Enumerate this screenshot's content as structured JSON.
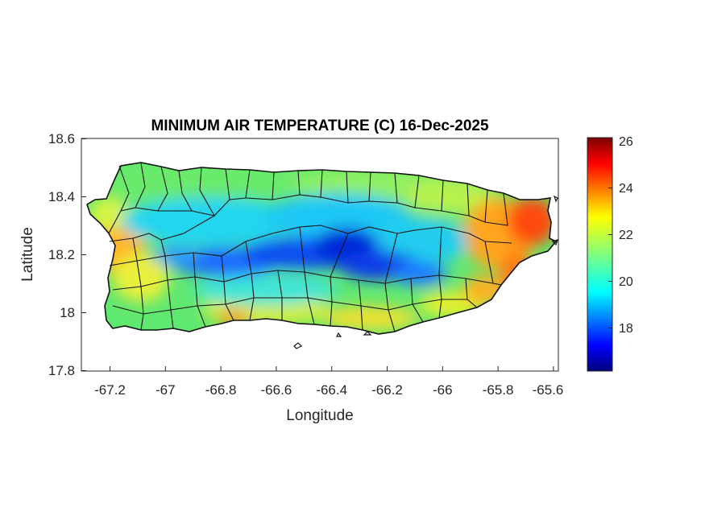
{
  "title": "MINIMUM AIR TEMPERATURE (C) 16-Dec-2025",
  "xlabel": "Longitude",
  "ylabel": "Latitude",
  "xticks": [
    "-67.2",
    "-67",
    "-66.8",
    "-66.6",
    "-66.4",
    "-66.2",
    "-66",
    "-65.8",
    "-65.6"
  ],
  "yticks": [
    "18.6",
    "18.4",
    "18.2",
    "18",
    "17.8"
  ],
  "colorbar": {
    "ticks": [
      "26",
      "24",
      "22",
      "20",
      "18"
    ],
    "range": [
      16.2,
      26.2
    ],
    "colormap": "jet"
  },
  "chart_data": {
    "type": "heatmap",
    "title": "MINIMUM AIR TEMPERATURE (C) 16-Dec-2025",
    "xlabel": "Longitude",
    "ylabel": "Latitude",
    "xlim": [
      -67.3,
      -65.58
    ],
    "ylim": [
      17.8,
      18.6
    ],
    "region": "Puerto Rico (municipality boundaries)",
    "grid": false,
    "temperature_zones": [
      {
        "area": "central cordillera",
        "value_c": 17.5
      },
      {
        "area": "interior highlands",
        "value_c": 19.5
      },
      {
        "area": "north coast",
        "value_c": 21.0
      },
      {
        "area": "west coast",
        "value_c": 22.5
      },
      {
        "area": "south coast",
        "value_c": 22.0
      },
      {
        "area": "east coast",
        "value_c": 25.0
      }
    ]
  }
}
